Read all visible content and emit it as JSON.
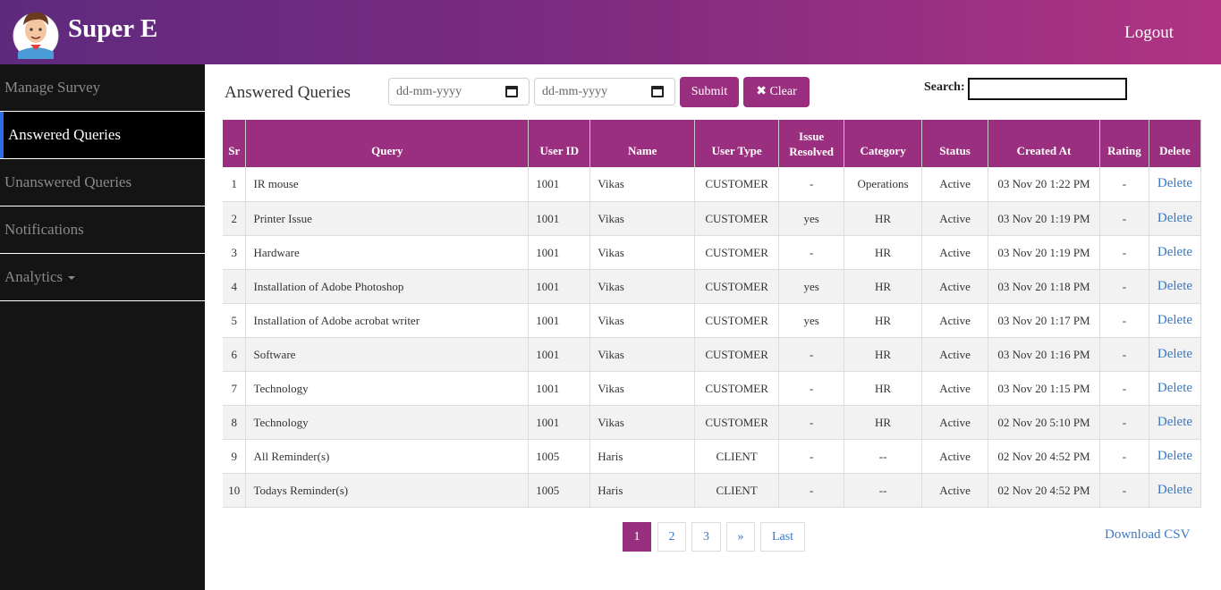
{
  "header": {
    "brand": "Super E",
    "logout": "Logout"
  },
  "sidebar": {
    "items": [
      {
        "label": "Manage Survey"
      },
      {
        "label": "Answered Queries"
      },
      {
        "label": "Unanswered Queries"
      },
      {
        "label": "Notifications"
      },
      {
        "label": "Analytics"
      }
    ]
  },
  "toolbar": {
    "title": "Answered Queries",
    "date_from_placeholder": "dd-mm-yyyy",
    "date_to_placeholder": "dd-mm-yyyy",
    "submit_label": "Submit",
    "clear_label": "Clear",
    "clear_icon": "✖",
    "search_label": "Search:"
  },
  "table": {
    "headers": [
      "Sr",
      "Query",
      "User ID",
      "Name",
      "User Type",
      "Issue Resolved",
      "Category",
      "Status",
      "Created At",
      "Rating",
      "Delete"
    ],
    "rows": [
      [
        "1",
        "IR mouse",
        "1001",
        "Vikas",
        "CUSTOMER",
        "-",
        "Operations",
        "Active",
        "03 Nov 20 1:22 PM",
        "-",
        "Delete"
      ],
      [
        "2",
        "Printer Issue",
        "1001",
        "Vikas",
        "CUSTOMER",
        "yes",
        "HR",
        "Active",
        "03 Nov 20 1:19 PM",
        "-",
        "Delete"
      ],
      [
        "3",
        "Hardware",
        "1001",
        "Vikas",
        "CUSTOMER",
        "-",
        "HR",
        "Active",
        "03 Nov 20 1:19 PM",
        "-",
        "Delete"
      ],
      [
        "4",
        "Installation of Adobe Photoshop",
        "1001",
        "Vikas",
        "CUSTOMER",
        "yes",
        "HR",
        "Active",
        "03 Nov 20 1:18 PM",
        "-",
        "Delete"
      ],
      [
        "5",
        "Installation of Adobe acrobat writer",
        "1001",
        "Vikas",
        "CUSTOMER",
        "yes",
        "HR",
        "Active",
        "03 Nov 20 1:17 PM",
        "-",
        "Delete"
      ],
      [
        "6",
        "Software",
        "1001",
        "Vikas",
        "CUSTOMER",
        "-",
        "HR",
        "Active",
        "03 Nov 20 1:16 PM",
        "-",
        "Delete"
      ],
      [
        "7",
        "Technology",
        "1001",
        "Vikas",
        "CUSTOMER",
        "-",
        "HR",
        "Active",
        "03 Nov 20 1:15 PM",
        "-",
        "Delete"
      ],
      [
        "8",
        "Technology",
        "1001",
        "Vikas",
        "CUSTOMER",
        "-",
        "HR",
        "Active",
        "02 Nov 20 5:10 PM",
        "-",
        "Delete"
      ],
      [
        "9",
        "All Reminder(s)",
        "1005",
        "Haris",
        "CLIENT",
        "-",
        "--",
        "Active",
        "02 Nov 20 4:52 PM",
        "-",
        "Delete"
      ],
      [
        "10",
        "Todays Reminder(s)",
        "1005",
        "Haris",
        "CLIENT",
        "-",
        "--",
        "Active",
        "02 Nov 20 4:52 PM",
        "-",
        "Delete"
      ]
    ]
  },
  "pagination": {
    "pages": [
      "1",
      "2",
      "3"
    ],
    "next": "»",
    "last": "Last",
    "current": "1"
  },
  "download_csv": "Download CSV",
  "colors": {
    "accent": "#9b2f7f",
    "link": "#3a78c3",
    "sidebar_bg": "#141414",
    "active_indicator": "#2c6ee8"
  }
}
